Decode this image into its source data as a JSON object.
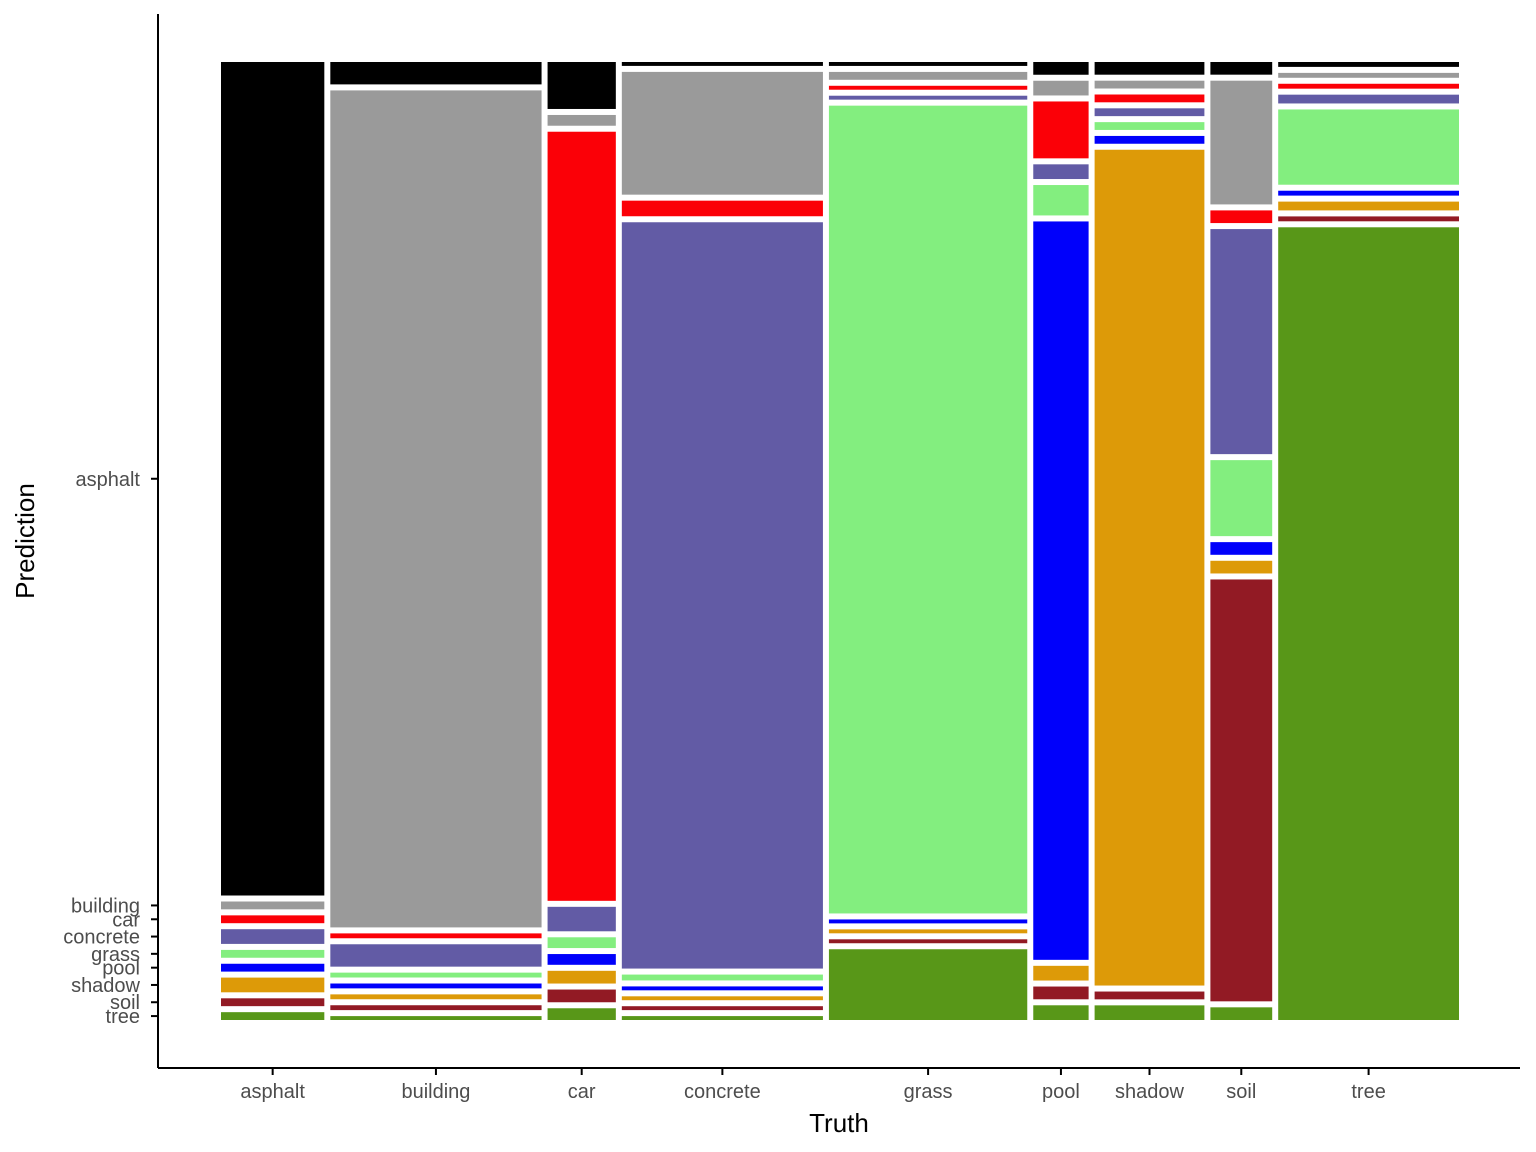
{
  "chart_data": {
    "type": "mosaic",
    "title": "",
    "xlabel": "Truth",
    "ylabel": "Prediction",
    "categories": [
      "asphalt",
      "building",
      "car",
      "concrete",
      "grass",
      "pool",
      "shadow",
      "soil",
      "tree"
    ],
    "prediction_levels": [
      "asphalt",
      "building",
      "car",
      "concrete",
      "grass",
      "pool",
      "shadow",
      "soil",
      "tree"
    ],
    "column_widths": [
      0.112,
      0.229,
      0.074,
      0.218,
      0.215,
      0.06,
      0.119,
      0.067,
      0.196
    ],
    "proportions": [
      [
        0.85,
        0.008,
        0.008,
        0.015,
        0.008,
        0.008,
        0.015,
        0.008,
        0.008
      ],
      [
        0.023,
        0.86,
        0.005,
        0.023,
        0.005,
        0.005,
        0.005,
        0.005,
        0.004
      ],
      [
        0.048,
        0.011,
        0.786,
        0.025,
        0.011,
        0.011,
        0.013,
        0.013,
        0.012
      ],
      [
        0.004,
        0.126,
        0.016,
        0.766,
        0.006,
        0.004,
        0.004,
        0.004,
        0.004
      ],
      [
        0.004,
        0.008,
        0.004,
        0.004,
        0.822,
        0.004,
        0.004,
        0.004,
        0.072
      ],
      [
        0.013,
        0.015,
        0.058,
        0.015,
        0.031,
        0.753,
        0.015,
        0.013,
        0.015
      ],
      [
        0.013,
        0.008,
        0.008,
        0.008,
        0.008,
        0.008,
        0.856,
        0.008,
        0.015
      ],
      [
        0.013,
        0.127,
        0.013,
        0.231,
        0.078,
        0.013,
        0.013,
        0.433,
        0.013
      ],
      [
        0.005,
        0.005,
        0.005,
        0.009,
        0.077,
        0.005,
        0.009,
        0.005,
        0.811
      ]
    ],
    "colors": {
      "asphalt": "#000000",
      "building": "#9a9a9a",
      "car": "#fb0007",
      "concrete": "#625ba5",
      "grass": "#83ee7f",
      "pool": "#0000fb",
      "shadow": "#dd9a08",
      "soil": "#921a24",
      "tree": "#589718"
    },
    "grid": false,
    "legend": "none"
  }
}
